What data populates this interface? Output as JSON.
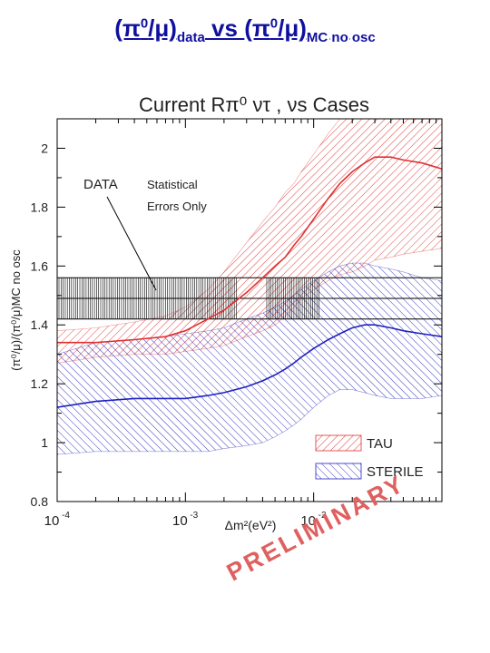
{
  "slide": {
    "title": {
      "p1": "(π",
      "s1": "0",
      "p2": "/μ)",
      "sub1": "data",
      "vs": " vs ",
      "p3": "(π",
      "s2": "0",
      "p4": "/μ)",
      "sub2": "MC no osc"
    },
    "watermark": "PRELIMINARY",
    "colors": {
      "title": "#1010a0",
      "watermark": "#e06060"
    }
  },
  "chart_data": {
    "type": "line",
    "title": "Current Rπ⁰ ντ , νs Cases",
    "xlabel": "Δm²(eV²)",
    "ylabel": "(π⁰/μ)/(π⁰/μ)MC no osc",
    "x_scale": "log",
    "xlim": [
      0.0001,
      0.1
    ],
    "ylim": [
      0.8,
      2.1
    ],
    "yticks": [
      0.8,
      1,
      1.2,
      1.4,
      1.6,
      1.8,
      2
    ],
    "yticklabels": [
      "0.8",
      "1",
      "1.2",
      "1.4",
      "1.6",
      "1.8",
      "2"
    ],
    "xticklabels": [
      {
        "value": 0.0001,
        "base": "10",
        "exp": "-4"
      },
      {
        "value": 0.001,
        "base": "10",
        "exp": "-3"
      },
      {
        "value": 0.01,
        "base": "10",
        "exp": "-2"
      }
    ],
    "data_band": {
      "label": "DATA",
      "value": 1.49,
      "lower": 1.42,
      "upper": 1.56
    },
    "annotation": [
      "Statistical",
      "Errors Only"
    ],
    "legend": {
      "position": "bottom-right",
      "entries": [
        "TAU",
        "STERILE"
      ]
    },
    "series": [
      {
        "name": "TAU",
        "color": "#e03030",
        "x": [
          0.0001,
          0.0002,
          0.0004,
          0.0007,
          0.001,
          0.0015,
          0.002,
          0.003,
          0.004,
          0.005,
          0.006,
          0.007,
          0.008,
          0.01,
          0.013,
          0.016,
          0.02,
          0.025,
          0.03,
          0.04,
          0.05,
          0.07,
          0.1
        ],
        "values": [
          1.34,
          1.34,
          1.35,
          1.36,
          1.38,
          1.42,
          1.45,
          1.51,
          1.56,
          1.6,
          1.63,
          1.67,
          1.7,
          1.76,
          1.83,
          1.88,
          1.92,
          1.95,
          1.97,
          1.97,
          1.96,
          1.95,
          1.93
        ],
        "upper": [
          1.38,
          1.39,
          1.41,
          1.43,
          1.46,
          1.52,
          1.58,
          1.68,
          1.75,
          1.8,
          1.85,
          1.88,
          1.92,
          1.98,
          2.05,
          2.1,
          2.12,
          2.12,
          2.12,
          2.12,
          2.12,
          2.12,
          2.12
        ],
        "lower": [
          1.27,
          1.29,
          1.3,
          1.3,
          1.31,
          1.32,
          1.33,
          1.36,
          1.38,
          1.4,
          1.43,
          1.46,
          1.49,
          1.52,
          1.55,
          1.57,
          1.58,
          1.6,
          1.62,
          1.63,
          1.64,
          1.65,
          1.66
        ]
      },
      {
        "name": "STERILE",
        "color": "#2020c0",
        "x": [
          0.0001,
          0.0002,
          0.0004,
          0.0007,
          0.001,
          0.0015,
          0.002,
          0.003,
          0.004,
          0.005,
          0.006,
          0.007,
          0.008,
          0.01,
          0.013,
          0.016,
          0.02,
          0.025,
          0.03,
          0.04,
          0.05,
          0.07,
          0.1
        ],
        "values": [
          1.12,
          1.14,
          1.15,
          1.15,
          1.15,
          1.16,
          1.17,
          1.19,
          1.21,
          1.23,
          1.25,
          1.27,
          1.29,
          1.32,
          1.35,
          1.37,
          1.39,
          1.4,
          1.4,
          1.39,
          1.38,
          1.37,
          1.36
        ],
        "upper": [
          1.3,
          1.34,
          1.35,
          1.36,
          1.37,
          1.38,
          1.39,
          1.42,
          1.44,
          1.46,
          1.48,
          1.5,
          1.52,
          1.55,
          1.58,
          1.6,
          1.61,
          1.61,
          1.6,
          1.59,
          1.58,
          1.56,
          1.55
        ],
        "lower": [
          0.96,
          0.97,
          0.97,
          0.97,
          0.97,
          0.97,
          0.98,
          0.99,
          1.0,
          1.02,
          1.04,
          1.06,
          1.08,
          1.12,
          1.16,
          1.18,
          1.18,
          1.17,
          1.16,
          1.15,
          1.15,
          1.15,
          1.16
        ]
      }
    ]
  }
}
